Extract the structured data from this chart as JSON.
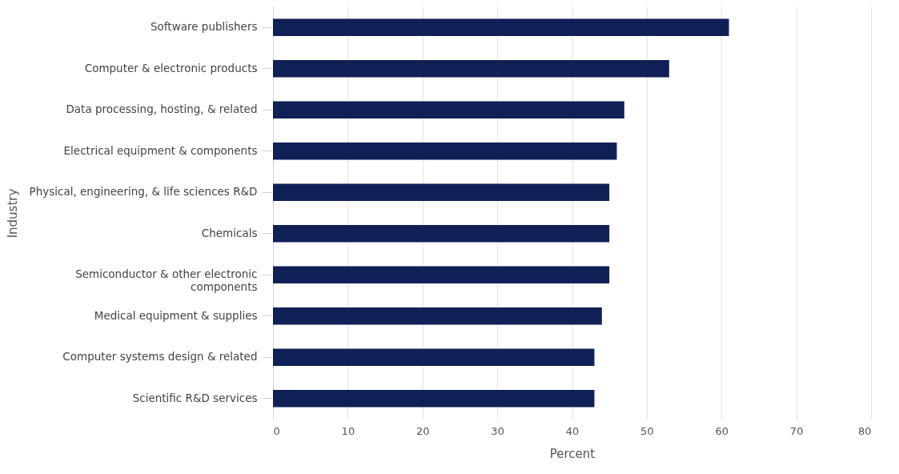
{
  "chart_data": {
    "type": "bar",
    "orientation": "horizontal",
    "xlabel": "Percent",
    "ylabel": "Industry",
    "categories": [
      "Software publishers",
      "Computer & electronic products",
      "Data processing, hosting, & related",
      "Electrical equipment & components",
      "Physical, engineering, & life sciences R&D",
      "Chemicals",
      "Semiconductor & other electronic components",
      "Medical equipment & supplies",
      "Computer systems design & related",
      "Scientific R&D services"
    ],
    "values": [
      61,
      53,
      47,
      46,
      45,
      45,
      45,
      44,
      43,
      43
    ],
    "color": "#111f57",
    "xlim": [
      0,
      80
    ],
    "xticks": [
      0,
      10,
      20,
      30,
      40,
      50,
      60,
      70,
      80
    ],
    "grid": "x"
  }
}
